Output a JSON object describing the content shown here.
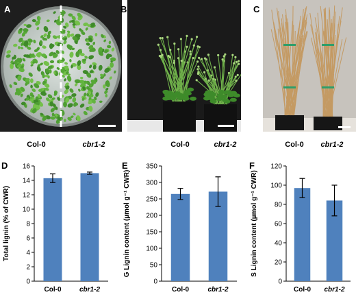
{
  "panels": {
    "A": {
      "letter": "A",
      "labels": [
        "Col-0",
        "cbr1-2"
      ]
    },
    "B": {
      "letter": "B",
      "labels": [
        "Col-0",
        "cbr1-2"
      ]
    },
    "C": {
      "letter": "C",
      "labels": [
        "Col-0",
        "cbr1-2"
      ]
    },
    "D": {
      "letter": "D"
    },
    "E": {
      "letter": "E"
    },
    "F": {
      "letter": "F"
    }
  },
  "colors": {
    "bar": "#4f81bd",
    "plate": "#c9d1cc",
    "plant_green": "#5aa83a",
    "dry_plant": "#c9a673",
    "photo_bg": "#1a1a1a"
  },
  "chart_data": [
    {
      "type": "bar",
      "panel": "D",
      "categories": [
        "Col-0",
        "cbr1-2"
      ],
      "values": [
        14.3,
        15.0
      ],
      "errors": [
        0.6,
        0.15
      ],
      "ylabel": "Total lignin (% of CWR)",
      "ylim": [
        0,
        16
      ],
      "yticks": [
        0,
        2,
        4,
        6,
        8,
        10,
        12,
        14,
        16
      ],
      "ytick_labels": [
        "0",
        "2",
        "4",
        "6",
        "8",
        "10",
        "12",
        "14",
        "16"
      ]
    },
    {
      "type": "bar",
      "panel": "E",
      "categories": [
        "Col-0",
        "cbr1-2"
      ],
      "values": [
        265,
        272
      ],
      "errors": [
        17,
        45
      ],
      "ylabel": "G Lignin content (µmol g⁻¹ CWR)",
      "ylim": [
        0,
        350
      ],
      "yticks": [
        0,
        50,
        100,
        150,
        200,
        250,
        300,
        350
      ],
      "ytick_labels": [
        "0",
        "50",
        "100",
        "150",
        "200",
        "250",
        "300",
        "350"
      ]
    },
    {
      "type": "bar",
      "panel": "F",
      "categories": [
        "Col-0",
        "cbr1-2"
      ],
      "values": [
        97,
        84
      ],
      "errors": [
        10,
        16
      ],
      "ylabel": "S Lignin content (µmol g⁻¹ CWR)",
      "ylim": [
        0,
        120
      ],
      "yticks": [
        0,
        20,
        40,
        60,
        80,
        100,
        120
      ],
      "ytick_labels": [
        "0",
        "20",
        "40",
        "60",
        "80",
        "100",
        "120"
      ]
    }
  ]
}
